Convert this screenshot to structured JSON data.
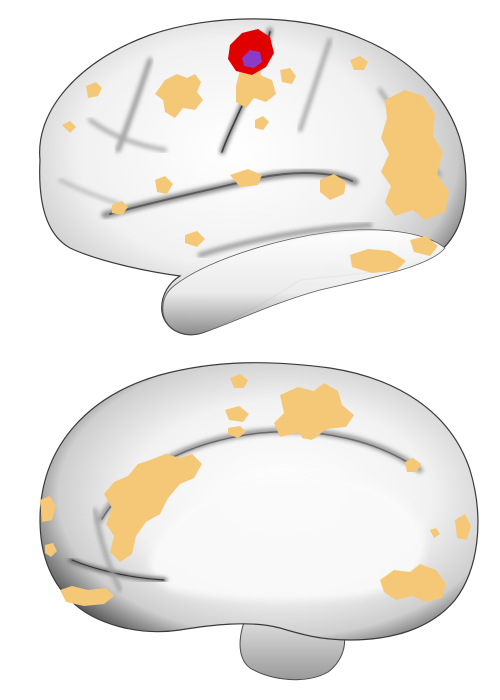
{
  "figure": {
    "panels": [
      {
        "view": "lateral",
        "hemisphere": "left"
      },
      {
        "view": "medial",
        "hemisphere": "left"
      }
    ]
  },
  "colors": {
    "background": "#ffffff",
    "cortex_light": "#f7f7f7",
    "cortex_mid": "#d8d8d8",
    "cortex_shadow": "#6e6e6e",
    "overlay_activation": "#f5c878",
    "peak_red": "#e00000",
    "peak_purple": "#8a3cc8"
  }
}
